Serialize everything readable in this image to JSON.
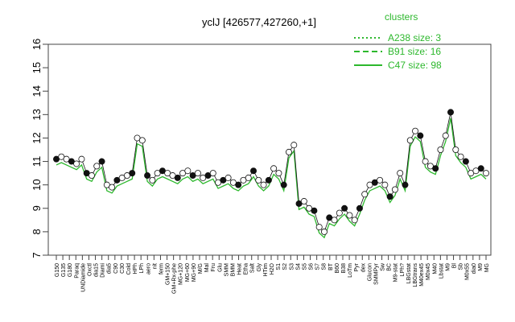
{
  "chart_data": {
    "type": "line",
    "title": "yclJ [426577,427260,+1]",
    "xlabel": "",
    "ylabel": "",
    "ylim": [
      7,
      16
    ],
    "yticks": [
      7,
      8,
      9,
      10,
      11,
      12,
      13,
      14,
      15,
      16
    ],
    "grid": false,
    "legend": {
      "title": "clusters",
      "placement": "top-right",
      "entries": [
        {
          "label": "A238 size: 3",
          "style": "dotted"
        },
        {
          "label": "B91 size: 16",
          "style": "dashed"
        },
        {
          "label": "C47 size: 98",
          "style": "solid"
        }
      ]
    },
    "series_color": "#2db82d",
    "x_tick_labels": [
      "G150",
      "G135",
      "G180",
      "Paraq",
      "UNDiamide",
      "Oxctl",
      "dia15",
      "Diami",
      "dia5",
      "C90",
      "C30",
      "Cold",
      "HPh",
      "LPh",
      "aero",
      "nit",
      "ferm",
      "GM+150",
      "GM+Rx-phe",
      "MG+120",
      "MG+60",
      "MG+90",
      "M/G",
      "Mal",
      "Fru",
      "Glu",
      "SMM",
      "BMM",
      "Heat",
      "Etha",
      "Salt",
      "Gly",
      "HTim",
      "H2O",
      "S1",
      "S2",
      "S3",
      "S4",
      "S5",
      "S6",
      "S7",
      "S8",
      "BT",
      "B60",
      "B38",
      "LoTm",
      "Pyr",
      "dex",
      "Glucon",
      "SMMPyr",
      "Sw",
      "BC",
      "M9-stat",
      "LPh?",
      "LBGstat",
      "LBGtrans",
      "M40ex45",
      "M0x45",
      "M40",
      "Lbstat",
      "M9",
      "Bl",
      "Sb",
      "M0x55",
      "dia0",
      "M9",
      "MG"
    ],
    "x_tick_labels_note": "",
    "series": [
      {
        "name": "",
        "points": [
          [
            1,
            11.1
          ],
          [
            2,
            11.2
          ],
          [
            3,
            11.1
          ],
          [
            4,
            11.0
          ],
          [
            5,
            10.9
          ],
          [
            6,
            11.1
          ],
          [
            7,
            10.5
          ],
          [
            8,
            10.4
          ],
          [
            9,
            10.8
          ],
          [
            10,
            11.0
          ],
          [
            11,
            10.0
          ],
          [
            12,
            9.9
          ],
          [
            13,
            10.2
          ],
          [
            14,
            10.3
          ],
          [
            15,
            10.4
          ],
          [
            16,
            10.5
          ],
          [
            17,
            12.0
          ],
          [
            18,
            11.9
          ],
          [
            19,
            10.4
          ],
          [
            20,
            10.2
          ],
          [
            21,
            10.5
          ],
          [
            22,
            10.6
          ],
          [
            23,
            10.5
          ],
          [
            24,
            10.4
          ],
          [
            25,
            10.3
          ],
          [
            26,
            10.5
          ],
          [
            27,
            10.6
          ],
          [
            28,
            10.4
          ],
          [
            29,
            10.5
          ],
          [
            30,
            10.3
          ],
          [
            31,
            10.4
          ],
          [
            32,
            10.5
          ],
          [
            33,
            10.1
          ],
          [
            34,
            10.2
          ],
          [
            35,
            10.3
          ],
          [
            36,
            10.1
          ],
          [
            37,
            10.0
          ],
          [
            38,
            10.2
          ],
          [
            39,
            10.3
          ],
          [
            40,
            10.6
          ],
          [
            41,
            10.2
          ],
          [
            42,
            10.0
          ],
          [
            43,
            10.2
          ],
          [
            44,
            10.7
          ],
          [
            45,
            10.5
          ],
          [
            46,
            10.0
          ],
          [
            47,
            11.4
          ],
          [
            48,
            11.7
          ],
          [
            49,
            9.2
          ],
          [
            50,
            9.3
          ],
          [
            51,
            9.0
          ],
          [
            52,
            8.9
          ],
          [
            53,
            8.2
          ],
          [
            54,
            8.0
          ],
          [
            55,
            8.6
          ],
          [
            56,
            8.5
          ],
          [
            57,
            8.8
          ],
          [
            58,
            9.0
          ],
          [
            59,
            8.7
          ],
          [
            60,
            8.5
          ],
          [
            61,
            9.0
          ],
          [
            62,
            9.6
          ],
          [
            63,
            10.0
          ],
          [
            64,
            10.1
          ],
          [
            65,
            10.2
          ],
          [
            66,
            10.0
          ],
          [
            67,
            9.5
          ],
          [
            68,
            9.8
          ],
          [
            69,
            10.5
          ],
          [
            70,
            10.0
          ],
          [
            71,
            11.9
          ],
          [
            72,
            12.3
          ],
          [
            73,
            12.1
          ],
          [
            74,
            11.0
          ],
          [
            75,
            10.8
          ],
          [
            76,
            10.7
          ],
          [
            77,
            11.5
          ],
          [
            78,
            12.1
          ],
          [
            79,
            13.1
          ],
          [
            80,
            11.5
          ],
          [
            81,
            11.2
          ],
          [
            82,
            11.0
          ],
          [
            83,
            10.5
          ],
          [
            84,
            10.6
          ],
          [
            85,
            10.7
          ],
          [
            86,
            10.5
          ]
        ]
      }
    ]
  }
}
